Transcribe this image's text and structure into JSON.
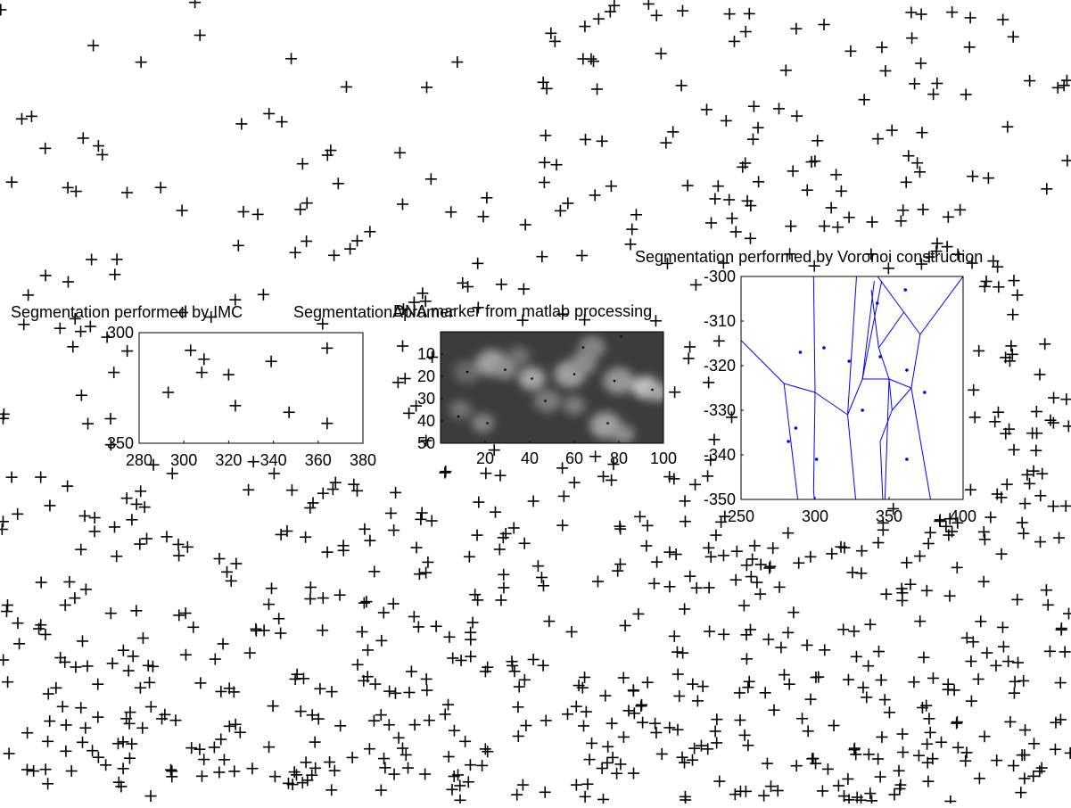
{
  "chart_data": [
    {
      "type": "scatter",
      "title": "Segmentation performed by IMC",
      "xlim": [
        280,
        380
      ],
      "ylim": [
        300,
        350
      ],
      "y_reversed": true,
      "xticks": [
        280,
        300,
        320,
        340,
        360,
        380
      ],
      "yticks": [
        300,
        350
      ],
      "xticklabels": [
        "280",
        "300",
        "320",
        "340",
        "360",
        "380"
      ],
      "yticklabels": [
        "300",
        "350"
      ],
      "marker": "+",
      "marker_color": "#000000",
      "points": [
        [
          303,
          308
        ],
        [
          309,
          312
        ],
        [
          308,
          318
        ],
        [
          320,
          319
        ],
        [
          339,
          313
        ],
        [
          364,
          307
        ],
        [
          293,
          327
        ],
        [
          323,
          333
        ],
        [
          347,
          336
        ],
        [
          364,
          341
        ]
      ]
    },
    {
      "type": "heatmap",
      "title": "DNA marker from matlab processing",
      "title_overlapped": "SegmentationApramer",
      "colormap": "gray",
      "xlim": [
        0,
        100
      ],
      "ylim": [
        0,
        50
      ],
      "y_reversed": true,
      "xticks": [
        20,
        40,
        60,
        80,
        100
      ],
      "yticks": [
        10,
        20,
        30,
        40,
        50
      ],
      "xticklabels": [
        "20",
        "40",
        "60",
        "80",
        "100"
      ],
      "yticklabels": [
        "10",
        "20",
        "30",
        "40",
        "50"
      ],
      "background_color": "#3c3c3c",
      "blobs": [
        [
          12,
          18,
          6,
          0.25
        ],
        [
          23,
          14,
          7,
          0.55
        ],
        [
          29,
          17,
          5,
          0.45
        ],
        [
          41,
          21,
          6,
          0.6
        ],
        [
          58,
          19,
          7,
          0.55
        ],
        [
          64,
          14,
          6,
          0.45
        ],
        [
          68,
          7,
          6,
          0.4
        ],
        [
          80,
          22,
          7,
          0.5
        ],
        [
          92,
          25,
          6,
          0.75
        ],
        [
          97,
          27,
          5,
          0.6
        ],
        [
          48,
          31,
          6,
          0.35
        ],
        [
          19,
          41,
          5,
          0.4
        ],
        [
          74,
          42,
          7,
          0.55
        ],
        [
          82,
          46,
          5,
          0.45
        ],
        [
          9,
          35,
          5,
          0.3
        ],
        [
          60,
          33,
          5,
          0.35
        ],
        [
          35,
          11,
          5,
          0.3
        ]
      ],
      "dots": [
        [
          12,
          18
        ],
        [
          29,
          17
        ],
        [
          41,
          21
        ],
        [
          60,
          19
        ],
        [
          64,
          7
        ],
        [
          81,
          2
        ],
        [
          78,
          22
        ],
        [
          95,
          26
        ],
        [
          47,
          31
        ],
        [
          8,
          38
        ],
        [
          21,
          41
        ],
        [
          75,
          41
        ]
      ]
    },
    {
      "type": "scatter",
      "title": "Segmentation performed by Voronoi construction",
      "xlim": [
        250,
        400
      ],
      "ylim": [
        -350,
        -300
      ],
      "xticks": [
        250,
        300,
        350,
        400
      ],
      "yticks": [
        -350,
        -340,
        -330,
        -320,
        -310,
        -300
      ],
      "xticklabels": [
        "250",
        "300",
        "350",
        "400"
      ],
      "yticklabels": [
        "-350",
        "-340",
        "-330",
        "-320",
        "-310",
        "-300"
      ],
      "marker": ".",
      "marker_color": "#0000ff",
      "line_color": "#0000ff",
      "points": [
        [
          361,
          -303
        ],
        [
          342,
          -306
        ],
        [
          290,
          -317
        ],
        [
          306,
          -316
        ],
        [
          344,
          -318
        ],
        [
          323,
          -319
        ],
        [
          362,
          -321
        ],
        [
          374,
          -326
        ],
        [
          332,
          -330
        ],
        [
          287,
          -334
        ],
        [
          282,
          -337
        ],
        [
          301,
          -341
        ],
        [
          362,
          -341
        ]
      ],
      "edges": [
        [
          [
            249,
            -314
          ],
          [
            279,
            -324
          ]
        ],
        [
          [
            279,
            -324
          ],
          [
            300,
            -326
          ]
        ],
        [
          [
            300,
            -326
          ],
          [
            299,
            -348
          ]
        ],
        [
          [
            279,
            -324
          ],
          [
            289,
            -352
          ]
        ],
        [
          [
            299,
            -348
          ],
          [
            300,
            -352
          ]
        ],
        [
          [
            300,
            -326
          ],
          [
            299,
            -300
          ]
        ],
        [
          [
            300,
            -326
          ],
          [
            322,
            -331
          ]
        ],
        [
          [
            322,
            -331
          ],
          [
            328,
            -300
          ]
        ],
        [
          [
            322,
            -331
          ],
          [
            332,
            -323
          ]
        ],
        [
          [
            332,
            -323
          ],
          [
            345,
            -301
          ]
        ],
        [
          [
            332,
            -323
          ],
          [
            350,
            -323
          ]
        ],
        [
          [
            350,
            -323
          ],
          [
            347,
            -352
          ]
        ],
        [
          [
            332,
            -323
          ],
          [
            340,
            -301
          ]
        ],
        [
          [
            350,
            -323
          ],
          [
            365,
            -325
          ]
        ],
        [
          [
            365,
            -325
          ],
          [
            378,
            -350
          ]
        ],
        [
          [
            365,
            -325
          ],
          [
            371,
            -313
          ]
        ],
        [
          [
            371,
            -313
          ],
          [
            360,
            -308
          ]
        ],
        [
          [
            360,
            -308
          ],
          [
            340,
            -299
          ]
        ],
        [
          [
            360,
            -308
          ],
          [
            343,
            -316
          ]
        ],
        [
          [
            371,
            -313
          ],
          [
            400,
            -300
          ]
        ],
        [
          [
            343,
            -316
          ],
          [
            350,
            -323
          ]
        ],
        [
          [
            343,
            -316
          ],
          [
            338,
            -303
          ]
        ],
        [
          [
            322,
            -331
          ],
          [
            328,
            -352
          ]
        ],
        [
          [
            350,
            -323
          ],
          [
            352,
            -330
          ]
        ],
        [
          [
            352,
            -330
          ],
          [
            344,
            -337
          ]
        ],
        [
          [
            344,
            -337
          ],
          [
            346,
            -352
          ]
        ],
        [
          [
            352,
            -330
          ],
          [
            365,
            -325
          ]
        ]
      ]
    }
  ]
}
